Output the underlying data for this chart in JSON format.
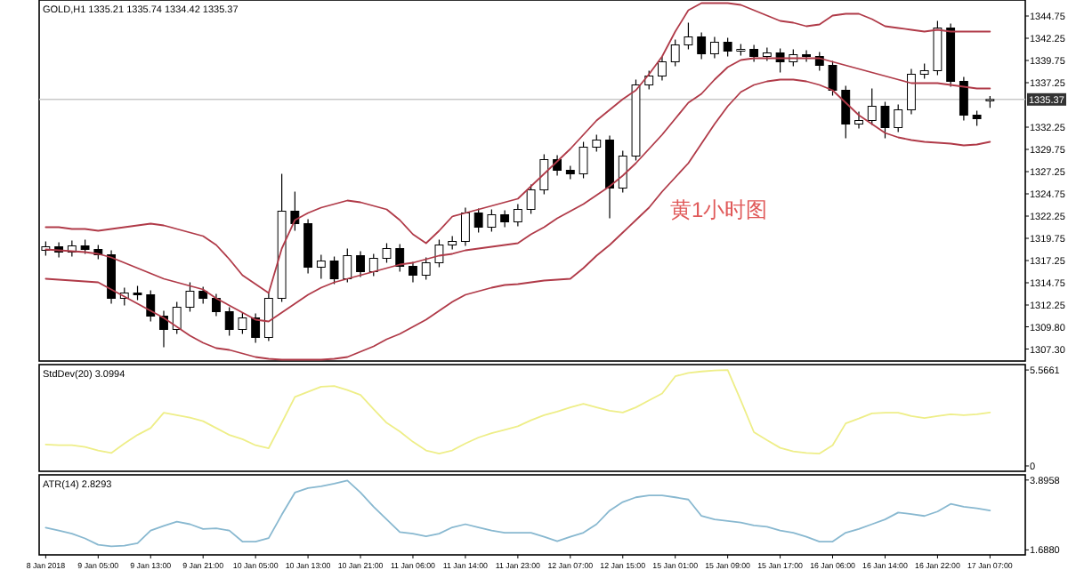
{
  "chart_data": [
    {
      "type": "candlestick",
      "title": "GOLD,H1 1335.21 1335.74 1334.42 1335.37",
      "tick_labels": "y",
      "grid": false,
      "categories": [
        null,
        null,
        null,
        null,
        null,
        null,
        null,
        null,
        null,
        null,
        null,
        null,
        null,
        null,
        null,
        null,
        null,
        null,
        null,
        null,
        null,
        null,
        null,
        null,
        null,
        null,
        null,
        null,
        null,
        null,
        null,
        null,
        null,
        null,
        null,
        null,
        null,
        null,
        null,
        null,
        null,
        null,
        null,
        null,
        null,
        null,
        null,
        null,
        null,
        null,
        null,
        null,
        null,
        null,
        null,
        null,
        null,
        null,
        null,
        null,
        null,
        null,
        null,
        null,
        null,
        null,
        null,
        null,
        null,
        null,
        null,
        null,
        null
      ],
      "ohlc": [
        [
          1318.4,
          1319.4,
          1317.8,
          1318.8
        ],
        [
          1318.8,
          1319.3,
          1317.6,
          1318.2
        ],
        [
          1318.2,
          1319.5,
          1317.7,
          1318.9
        ],
        [
          1318.9,
          1319.6,
          1318.0,
          1318.5
        ],
        [
          1318.5,
          1319.0,
          1317.4,
          1317.9
        ],
        [
          1317.9,
          1318.4,
          1312.4,
          1313.0
        ],
        [
          1313.0,
          1314.2,
          1312.2,
          1313.6
        ],
        [
          1313.6,
          1314.4,
          1312.8,
          1313.4
        ],
        [
          1313.4,
          1313.9,
          1310.4,
          1311.0
        ],
        [
          1311.0,
          1311.6,
          1307.5,
          1309.5
        ],
        [
          1309.5,
          1312.6,
          1309.0,
          1312.0
        ],
        [
          1312.0,
          1314.8,
          1311.5,
          1313.8
        ],
        [
          1313.8,
          1314.3,
          1312.4,
          1313.0
        ],
        [
          1313.0,
          1313.5,
          1311.0,
          1311.5
        ],
        [
          1311.5,
          1312.0,
          1308.8,
          1309.5
        ],
        [
          1309.5,
          1311.4,
          1309.0,
          1310.8
        ],
        [
          1310.8,
          1311.3,
          1308.0,
          1308.6
        ],
        [
          1308.6,
          1313.6,
          1308.2,
          1313.0
        ],
        [
          1313.0,
          1327.0,
          1312.6,
          1322.8
        ],
        [
          1322.8,
          1325.0,
          1320.6,
          1321.4
        ],
        [
          1321.4,
          1321.9,
          1315.8,
          1316.5
        ],
        [
          1316.5,
          1317.9,
          1315.2,
          1317.2
        ],
        [
          1317.2,
          1317.7,
          1314.6,
          1315.2
        ],
        [
          1315.2,
          1318.6,
          1314.8,
          1317.8
        ],
        [
          1317.8,
          1318.3,
          1315.4,
          1316.0
        ],
        [
          1316.0,
          1318.0,
          1315.5,
          1317.5
        ],
        [
          1317.5,
          1319.2,
          1317.0,
          1318.6
        ],
        [
          1318.6,
          1319.1,
          1316.0,
          1316.6
        ],
        [
          1316.6,
          1317.1,
          1314.8,
          1315.6
        ],
        [
          1315.6,
          1317.6,
          1315.1,
          1317.0
        ],
        [
          1317.0,
          1319.6,
          1316.5,
          1319.0
        ],
        [
          1319.0,
          1320.0,
          1318.5,
          1319.4
        ],
        [
          1319.4,
          1323.2,
          1318.9,
          1322.6
        ],
        [
          1322.6,
          1323.1,
          1320.4,
          1321.0
        ],
        [
          1321.0,
          1323.0,
          1320.5,
          1322.4
        ],
        [
          1322.4,
          1322.9,
          1321.0,
          1321.6
        ],
        [
          1321.6,
          1323.6,
          1321.1,
          1323.0
        ],
        [
          1323.0,
          1325.8,
          1322.5,
          1325.2
        ],
        [
          1325.2,
          1329.2,
          1324.7,
          1328.6
        ],
        [
          1328.6,
          1329.1,
          1326.8,
          1327.4
        ],
        [
          1327.4,
          1327.9,
          1326.4,
          1327.0
        ],
        [
          1327.0,
          1330.6,
          1326.5,
          1330.0
        ],
        [
          1330.0,
          1331.4,
          1329.5,
          1330.8
        ],
        [
          1330.8,
          1331.3,
          1322.0,
          1325.4
        ],
        [
          1325.4,
          1329.6,
          1324.9,
          1329.0
        ],
        [
          1329.0,
          1337.6,
          1328.5,
          1337.0
        ],
        [
          1337.0,
          1338.6,
          1336.5,
          1338.0
        ],
        [
          1338.0,
          1340.2,
          1337.5,
          1339.6
        ],
        [
          1339.6,
          1342.1,
          1339.1,
          1341.5
        ],
        [
          1341.5,
          1344.0,
          1341.0,
          1342.4
        ],
        [
          1342.4,
          1342.9,
          1339.9,
          1340.5
        ],
        [
          1340.5,
          1342.4,
          1340.0,
          1341.8
        ],
        [
          1341.8,
          1342.3,
          1340.2,
          1340.8
        ],
        [
          1340.8,
          1341.6,
          1340.3,
          1341.0
        ],
        [
          1341.0,
          1341.5,
          1339.6,
          1340.2
        ],
        [
          1340.2,
          1341.2,
          1339.7,
          1340.6
        ],
        [
          1340.6,
          1341.1,
          1338.4,
          1339.6
        ],
        [
          1339.6,
          1341.0,
          1339.1,
          1340.4
        ],
        [
          1340.4,
          1340.9,
          1339.6,
          1340.2
        ],
        [
          1340.2,
          1340.7,
          1338.6,
          1339.2
        ],
        [
          1339.2,
          1339.7,
          1335.8,
          1336.4
        ],
        [
          1336.4,
          1336.9,
          1331.0,
          1332.6
        ],
        [
          1332.6,
          1334.0,
          1332.1,
          1333.0
        ],
        [
          1333.0,
          1336.6,
          1332.5,
          1334.6
        ],
        [
          1334.6,
          1335.1,
          1331.0,
          1332.2
        ],
        [
          1332.2,
          1334.8,
          1331.7,
          1334.2
        ],
        [
          1334.2,
          1338.8,
          1333.7,
          1338.2
        ],
        [
          1338.2,
          1339.4,
          1337.7,
          1338.6
        ],
        [
          1338.6,
          1344.2,
          1338.1,
          1343.4
        ],
        [
          1343.4,
          1343.9,
          1336.8,
          1337.4
        ],
        [
          1337.4,
          1337.9,
          1333.0,
          1333.6
        ],
        [
          1333.6,
          1334.1,
          1332.4,
          1333.2
        ],
        [
          1335.21,
          1335.74,
          1334.42,
          1335.37
        ]
      ],
      "series": [
        {
          "type": "line",
          "color": "#b03a48",
          "values": [
            1321.0,
            1321.0,
            1320.8,
            1320.8,
            1320.6,
            1320.8,
            1321.0,
            1321.2,
            1321.4,
            1321.2,
            1320.8,
            1320.4,
            1320.0,
            1319.0,
            1317.4,
            1315.6,
            1314.6,
            1313.6,
            1318.6,
            1321.8,
            1322.6,
            1323.2,
            1323.6,
            1324.0,
            1323.8,
            1323.4,
            1323.0,
            1321.8,
            1320.2,
            1319.2,
            1320.6,
            1322.2,
            1322.6,
            1323.0,
            1323.4,
            1323.8,
            1324.2,
            1325.6,
            1327.0,
            1328.4,
            1329.8,
            1331.4,
            1333.0,
            1334.2,
            1335.4,
            1336.4,
            1338.2,
            1340.2,
            1343.0,
            1345.4,
            1346.2,
            1346.2,
            1346.2,
            1346.0,
            1345.4,
            1344.8,
            1344.2,
            1344.0,
            1343.6,
            1343.8,
            1344.8,
            1345.0,
            1345.0,
            1344.4,
            1343.6,
            1343.4,
            1343.2,
            1343.0,
            1343.2,
            1343.0,
            1343.0,
            1343.0,
            1343.0
          ]
        },
        {
          "type": "line",
          "color": "#b03a48",
          "values": [
            1318.5,
            1318.4,
            1318.3,
            1318.2,
            1318.0,
            1317.6,
            1317.0,
            1316.4,
            1315.8,
            1315.2,
            1314.8,
            1314.4,
            1314.0,
            1313.0,
            1312.2,
            1311.4,
            1310.6,
            1310.4,
            1311.4,
            1312.4,
            1313.4,
            1314.2,
            1314.8,
            1315.2,
            1315.6,
            1316.0,
            1316.4,
            1316.8,
            1317.0,
            1317.4,
            1317.8,
            1318.0,
            1318.4,
            1318.6,
            1318.8,
            1319.0,
            1319.2,
            1320.2,
            1321.0,
            1322.0,
            1322.8,
            1323.6,
            1324.6,
            1325.6,
            1326.8,
            1328.2,
            1329.8,
            1331.4,
            1333.2,
            1335.0,
            1336.0,
            1337.6,
            1339.0,
            1339.8,
            1340.0,
            1340.0,
            1340.0,
            1340.0,
            1340.0,
            1340.0,
            1339.6,
            1339.2,
            1338.8,
            1338.4,
            1338.0,
            1337.6,
            1337.2,
            1337.2,
            1337.2,
            1337.0,
            1336.8,
            1336.6,
            1336.6
          ]
        },
        {
          "type": "line",
          "color": "#b03a48",
          "values": [
            1315.2,
            1315.1,
            1315.0,
            1314.9,
            1314.8,
            1314.0,
            1313.2,
            1312.4,
            1311.6,
            1310.8,
            1309.8,
            1308.8,
            1308.0,
            1307.4,
            1307.2,
            1306.8,
            1306.4,
            1306.2,
            1306.1,
            1306.1,
            1306.1,
            1306.1,
            1306.2,
            1306.4,
            1307.0,
            1307.6,
            1308.4,
            1309.0,
            1309.8,
            1310.6,
            1311.6,
            1312.6,
            1313.4,
            1313.8,
            1314.2,
            1314.5,
            1314.6,
            1314.8,
            1315.0,
            1315.1,
            1315.2,
            1316.4,
            1317.8,
            1319.0,
            1320.4,
            1321.8,
            1323.2,
            1325.0,
            1326.6,
            1328.2,
            1330.4,
            1332.6,
            1334.6,
            1336.2,
            1337.0,
            1337.4,
            1337.6,
            1337.6,
            1337.4,
            1337.0,
            1336.4,
            1335.0,
            1333.6,
            1332.6,
            1331.6,
            1331.1,
            1330.8,
            1330.6,
            1330.5,
            1330.4,
            1330.2,
            1330.3,
            1330.6
          ]
        }
      ],
      "ylim": [
        1305.95,
        1346.55
      ],
      "yticks": [
        {
          "value": 1307.3,
          "label": "1307.30"
        },
        {
          "value": 1309.8,
          "label": "1309.80"
        },
        1312.25,
        1314.75,
        1317.25,
        1319.75,
        1322.25,
        1324.75,
        1327.25,
        1329.75,
        1332.25,
        1337.25,
        1339.75,
        1342.25,
        1344.75
      ],
      "ref_lines": [
        {
          "axis": "y",
          "value": 1335.37,
          "label": "1335.37",
          "color": "#c8c8c8"
        }
      ],
      "annotations": [
        "黄1小时图"
      ]
    },
    {
      "type": "line",
      "title": "StdDev(20) 3.0994",
      "tick_labels": "y",
      "grid": false,
      "categories": [
        null,
        null,
        null,
        null,
        null,
        null,
        null,
        null,
        null,
        null,
        null,
        null,
        null,
        null,
        null,
        null,
        null,
        null,
        null,
        null,
        null,
        null,
        null,
        null,
        null,
        null,
        null,
        null,
        null,
        null,
        null,
        null,
        null,
        null,
        null,
        null,
        null,
        null,
        null,
        null,
        null,
        null,
        null,
        null,
        null,
        null,
        null,
        null,
        null,
        null,
        null,
        null,
        null,
        null,
        null,
        null,
        null,
        null,
        null,
        null,
        null,
        null,
        null,
        null,
        null,
        null,
        null,
        null,
        null,
        null,
        null,
        null,
        null
      ],
      "series": [
        {
          "color": "#eeee88",
          "values": [
            1.24,
            1.2,
            1.2,
            1.1,
            0.9,
            0.75,
            1.3,
            1.8,
            2.2,
            3.09,
            2.95,
            2.8,
            2.6,
            2.2,
            1.8,
            1.55,
            1.2,
            1.03,
            2.5,
            4.0,
            4.3,
            4.6,
            4.64,
            4.4,
            4.12,
            3.3,
            2.5,
            2.0,
            1.4,
            0.9,
            0.72,
            0.9,
            1.3,
            1.65,
            1.9,
            2.1,
            2.3,
            2.65,
            2.95,
            3.15,
            3.4,
            3.6,
            3.4,
            3.2,
            3.1,
            3.4,
            3.8,
            4.2,
            5.2,
            5.4,
            5.48,
            5.54,
            5.56,
            3.8,
            1.96,
            1.5,
            1.05,
            0.85,
            0.75,
            0.72,
            1.2,
            2.47,
            2.75,
            3.05,
            3.09,
            3.09,
            2.9,
            2.78,
            2.9,
            3.0,
            2.95,
            3.0,
            3.1
          ]
        }
      ],
      "ylim": [
        -0.31,
        5.88
      ],
      "yticks": [
        0,
        5.5661
      ]
    },
    {
      "type": "line",
      "title": "ATR(14) 2.8293",
      "grid": false,
      "categories": [
        "8 Jan 2018",
        null,
        null,
        null,
        "9 Jan 05:00",
        null,
        null,
        null,
        "9 Jan 13:00",
        null,
        null,
        null,
        "9 Jan 21:00",
        null,
        null,
        null,
        "10 Jan 05:00",
        null,
        null,
        null,
        "10 Jan 13:00",
        null,
        null,
        null,
        "10 Jan 21:00",
        null,
        null,
        null,
        "11 Jan 06:00",
        null,
        null,
        null,
        "11 Jan 14:00",
        null,
        null,
        null,
        "11 Jan 23:00",
        null,
        null,
        null,
        "12 Jan 07:00",
        null,
        null,
        null,
        "12 Jan 15:00",
        null,
        null,
        null,
        "15 Jan 01:00",
        null,
        null,
        null,
        "15 Jan 09:00",
        null,
        null,
        null,
        "15 Jan 17:00",
        null,
        null,
        null,
        "16 Jan 06:00",
        null,
        null,
        null,
        "16 Jan 14:00",
        null,
        null,
        null,
        "16 Jan 22:00",
        null,
        null,
        null,
        "17 Jan 07:00"
      ],
      "series": [
        {
          "color": "#88b8d0",
          "values": [
            2.39,
            2.3,
            2.2,
            2.05,
            1.85,
            1.8,
            1.82,
            1.9,
            2.3,
            2.45,
            2.58,
            2.5,
            2.35,
            2.37,
            2.3,
            1.95,
            1.95,
            2.06,
            2.8,
            3.5,
            3.64,
            3.7,
            3.78,
            3.88,
            3.5,
            3.05,
            2.65,
            2.25,
            2.2,
            2.12,
            2.2,
            2.4,
            2.5,
            2.4,
            2.3,
            2.23,
            2.23,
            2.23,
            2.1,
            1.96,
            2.1,
            2.23,
            2.5,
            2.93,
            3.2,
            3.35,
            3.41,
            3.41,
            3.35,
            3.28,
            2.76,
            2.65,
            2.6,
            2.55,
            2.46,
            2.42,
            2.3,
            2.23,
            2.1,
            1.95,
            1.95,
            2.23,
            2.35,
            2.5,
            2.65,
            2.87,
            2.82,
            2.76,
            2.9,
            3.14,
            3.05,
            3.0,
            2.93
          ]
        }
      ],
      "ylim": [
        1.53,
        4.06
      ],
      "yticks": [
        {
          "value": 1.688,
          "label": "1.6880"
        },
        3.8958
      ]
    }
  ]
}
